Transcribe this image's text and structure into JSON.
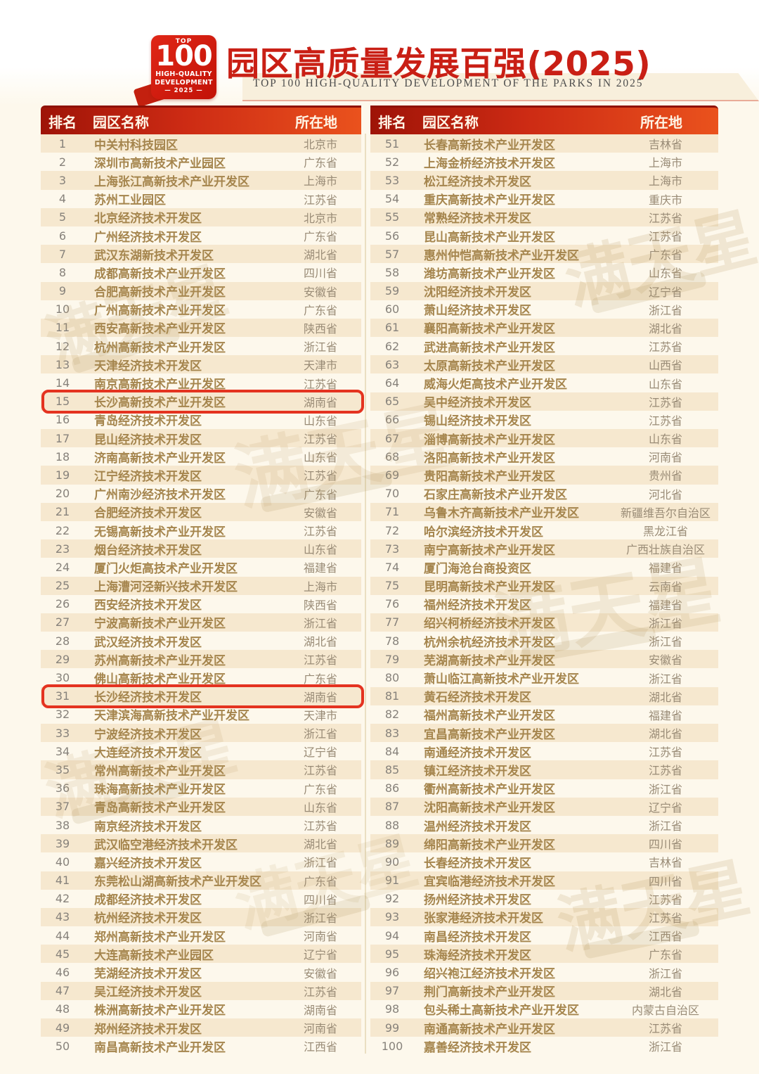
{
  "header": {
    "badge": {
      "top": "TOP",
      "number": "100",
      "line1": "HIGH-QUALITY",
      "line2": "DEVELOPMENT",
      "year": "— 2025 —"
    },
    "title": "园区高质量发展百强(2025)",
    "subtitle": "TOP 100 HIGH-QUALITY DEVELOPMENT OF THE PARKS IN 2025"
  },
  "watermark": {
    "text": "满天星"
  },
  "colors": {
    "accent_red": "#cd2b14",
    "highlight_border": "#e43320",
    "park_name_gold": "#a5854d",
    "stripe_beige": "#f6e8cf",
    "page_cream": "#fdf8ec"
  },
  "table": {
    "columns": [
      "排名",
      "园区名称",
      "所在地"
    ],
    "highlighted_ranks": [
      "15",
      "31"
    ],
    "left_rows": [
      {
        "rank": "1",
        "name": "中关村科技园区",
        "location": "北京市"
      },
      {
        "rank": "2",
        "name": "深圳市高新技术产业园区",
        "location": "广东省"
      },
      {
        "rank": "3",
        "name": "上海张江高新技术产业开发区",
        "location": "上海市"
      },
      {
        "rank": "4",
        "name": "苏州工业园区",
        "location": "江苏省"
      },
      {
        "rank": "5",
        "name": "北京经济技术开发区",
        "location": "北京市"
      },
      {
        "rank": "6",
        "name": "广州经济技术开发区",
        "location": "广东省"
      },
      {
        "rank": "7",
        "name": "武汉东湖新技术开发区",
        "location": "湖北省"
      },
      {
        "rank": "8",
        "name": "成都高新技术产业开发区",
        "location": "四川省"
      },
      {
        "rank": "9",
        "name": "合肥高新技术产业开发区",
        "location": "安徽省"
      },
      {
        "rank": "10",
        "name": "广州高新技术产业开发区",
        "location": "广东省"
      },
      {
        "rank": "11",
        "name": "西安高新技术产业开发区",
        "location": "陕西省"
      },
      {
        "rank": "12",
        "name": "杭州高新技术产业开发区",
        "location": "浙江省"
      },
      {
        "rank": "13",
        "name": "天津经济技术开发区",
        "location": "天津市"
      },
      {
        "rank": "14",
        "name": "南京高新技术产业开发区",
        "location": "江苏省"
      },
      {
        "rank": "15",
        "name": "长沙高新技术产业开发区",
        "location": "湖南省"
      },
      {
        "rank": "16",
        "name": "青岛经济技术开发区",
        "location": "山东省"
      },
      {
        "rank": "17",
        "name": "昆山经济技术开发区",
        "location": "江苏省"
      },
      {
        "rank": "18",
        "name": "济南高新技术产业开发区",
        "location": "山东省"
      },
      {
        "rank": "19",
        "name": "江宁经济技术开发区",
        "location": "江苏省"
      },
      {
        "rank": "20",
        "name": "广州南沙经济技术开发区",
        "location": "广东省"
      },
      {
        "rank": "21",
        "name": "合肥经济技术开发区",
        "location": "安徽省"
      },
      {
        "rank": "22",
        "name": "无锡高新技术产业开发区",
        "location": "江苏省"
      },
      {
        "rank": "23",
        "name": "烟台经济技术开发区",
        "location": "山东省"
      },
      {
        "rank": "24",
        "name": "厦门火炬高技术产业开发区",
        "location": "福建省"
      },
      {
        "rank": "25",
        "name": "上海漕河泾新兴技术开发区",
        "location": "上海市"
      },
      {
        "rank": "26",
        "name": "西安经济技术开发区",
        "location": "陕西省"
      },
      {
        "rank": "27",
        "name": "宁波高新技术产业开发区",
        "location": "浙江省"
      },
      {
        "rank": "28",
        "name": "武汉经济技术开发区",
        "location": "湖北省"
      },
      {
        "rank": "29",
        "name": "苏州高新技术产业开发区",
        "location": "江苏省"
      },
      {
        "rank": "30",
        "name": "佛山高新技术产业开发区",
        "location": "广东省"
      },
      {
        "rank": "31",
        "name": "长沙经济技术开发区",
        "location": "湖南省"
      },
      {
        "rank": "32",
        "name": "天津滨海高新技术产业开发区",
        "location": "天津市"
      },
      {
        "rank": "33",
        "name": "宁波经济技术开发区",
        "location": "浙江省"
      },
      {
        "rank": "34",
        "name": "大连经济技术开发区",
        "location": "辽宁省"
      },
      {
        "rank": "35",
        "name": "常州高新技术产业开发区",
        "location": "江苏省"
      },
      {
        "rank": "36",
        "name": "珠海高新技术产业开发区",
        "location": "广东省"
      },
      {
        "rank": "37",
        "name": "青岛高新技术产业开发区",
        "location": "山东省"
      },
      {
        "rank": "38",
        "name": "南京经济技术开发区",
        "location": "江苏省"
      },
      {
        "rank": "39",
        "name": "武汉临空港经济技术开发区",
        "location": "湖北省"
      },
      {
        "rank": "40",
        "name": "嘉兴经济技术开发区",
        "location": "浙江省"
      },
      {
        "rank": "41",
        "name": "东莞松山湖高新技术产业开发区",
        "location": "广东省"
      },
      {
        "rank": "42",
        "name": "成都经济技术开发区",
        "location": "四川省"
      },
      {
        "rank": "43",
        "name": "杭州经济技术开发区",
        "location": "浙江省"
      },
      {
        "rank": "44",
        "name": "郑州高新技术产业开发区",
        "location": "河南省"
      },
      {
        "rank": "45",
        "name": "大连高新技术产业园区",
        "location": "辽宁省"
      },
      {
        "rank": "46",
        "name": "芜湖经济技术开发区",
        "location": "安徽省"
      },
      {
        "rank": "47",
        "name": "吴江经济技术开发区",
        "location": "江苏省"
      },
      {
        "rank": "48",
        "name": "株洲高新技术产业开发区",
        "location": "湖南省"
      },
      {
        "rank": "49",
        "name": "郑州经济技术开发区",
        "location": "河南省"
      },
      {
        "rank": "50",
        "name": "南昌高新技术产业开发区",
        "location": "江西省"
      }
    ],
    "right_rows": [
      {
        "rank": "51",
        "name": "长春高新技术产业开发区",
        "location": "吉林省"
      },
      {
        "rank": "52",
        "name": "上海金桥经济技术开发区",
        "location": "上海市"
      },
      {
        "rank": "53",
        "name": "松江经济技术开发区",
        "location": "上海市"
      },
      {
        "rank": "54",
        "name": "重庆高新技术产业开发区",
        "location": "重庆市"
      },
      {
        "rank": "55",
        "name": "常熟经济技术开发区",
        "location": "江苏省"
      },
      {
        "rank": "56",
        "name": "昆山高新技术产业开发区",
        "location": "江苏省"
      },
      {
        "rank": "57",
        "name": "惠州仲恺高新技术产业开发区",
        "location": "广东省"
      },
      {
        "rank": "58",
        "name": "潍坊高新技术产业开发区",
        "location": "山东省"
      },
      {
        "rank": "59",
        "name": "沈阳经济技术开发区",
        "location": "辽宁省"
      },
      {
        "rank": "60",
        "name": "萧山经济技术开发区",
        "location": "浙江省"
      },
      {
        "rank": "61",
        "name": "襄阳高新技术产业开发区",
        "location": "湖北省"
      },
      {
        "rank": "62",
        "name": "武进高新技术产业开发区",
        "location": "江苏省"
      },
      {
        "rank": "63",
        "name": "太原高新技术产业开发区",
        "location": "山西省"
      },
      {
        "rank": "64",
        "name": "威海火炬高技术产业开发区",
        "location": "山东省"
      },
      {
        "rank": "65",
        "name": "吴中经济技术开发区",
        "location": "江苏省"
      },
      {
        "rank": "66",
        "name": "锡山经济技术开发区",
        "location": "江苏省"
      },
      {
        "rank": "67",
        "name": "淄博高新技术产业开发区",
        "location": "山东省"
      },
      {
        "rank": "68",
        "name": "洛阳高新技术产业开发区",
        "location": "河南省"
      },
      {
        "rank": "69",
        "name": "贵阳高新技术产业开发区",
        "location": "贵州省"
      },
      {
        "rank": "70",
        "name": "石家庄高新技术产业开发区",
        "location": "河北省"
      },
      {
        "rank": "71",
        "name": "乌鲁木齐高新技术产业开发区",
        "location": "新疆维吾尔自治区"
      },
      {
        "rank": "72",
        "name": "哈尔滨经济技术开发区",
        "location": "黑龙江省"
      },
      {
        "rank": "73",
        "name": "南宁高新技术产业开发区",
        "location": "广西壮族自治区"
      },
      {
        "rank": "74",
        "name": "厦门海沧台商投资区",
        "location": "福建省"
      },
      {
        "rank": "75",
        "name": "昆明高新技术产业开发区",
        "location": "云南省"
      },
      {
        "rank": "76",
        "name": "福州经济技术开发区",
        "location": "福建省"
      },
      {
        "rank": "77",
        "name": "绍兴柯桥经济技术开发区",
        "location": "浙江省"
      },
      {
        "rank": "78",
        "name": "杭州余杭经济技术开发区",
        "location": "浙江省"
      },
      {
        "rank": "79",
        "name": "芜湖高新技术产业开发区",
        "location": "安徽省"
      },
      {
        "rank": "80",
        "name": "萧山临江高新技术产业开发区",
        "location": "浙江省"
      },
      {
        "rank": "81",
        "name": "黄石经济技术开发区",
        "location": "湖北省"
      },
      {
        "rank": "82",
        "name": "福州高新技术产业开发区",
        "location": "福建省"
      },
      {
        "rank": "83",
        "name": "宜昌高新技术产业开发区",
        "location": "湖北省"
      },
      {
        "rank": "84",
        "name": "南通经济技术开发区",
        "location": "江苏省"
      },
      {
        "rank": "85",
        "name": "镇江经济技术开发区",
        "location": "江苏省"
      },
      {
        "rank": "86",
        "name": "衢州高新技术产业开发区",
        "location": "浙江省"
      },
      {
        "rank": "87",
        "name": "沈阳高新技术产业开发区",
        "location": "辽宁省"
      },
      {
        "rank": "88",
        "name": "温州经济技术开发区",
        "location": "浙江省"
      },
      {
        "rank": "89",
        "name": "绵阳高新技术产业开发区",
        "location": "四川省"
      },
      {
        "rank": "90",
        "name": "长春经济技术开发区",
        "location": "吉林省"
      },
      {
        "rank": "91",
        "name": "宜宾临港经济技术开发区",
        "location": "四川省"
      },
      {
        "rank": "92",
        "name": "扬州经济技术开发区",
        "location": "江苏省"
      },
      {
        "rank": "93",
        "name": "张家港经济技术开发区",
        "location": "江苏省"
      },
      {
        "rank": "94",
        "name": "南昌经济技术开发区",
        "location": "江西省"
      },
      {
        "rank": "95",
        "name": "珠海经济技术开发区",
        "location": "广东省"
      },
      {
        "rank": "96",
        "name": "绍兴袍江经济技术开发区",
        "location": "浙江省"
      },
      {
        "rank": "97",
        "name": "荆门高新技术产业开发区",
        "location": "湖北省"
      },
      {
        "rank": "98",
        "name": "包头稀土高新技术产业开发区",
        "location": "内蒙古自治区"
      },
      {
        "rank": "99",
        "name": "南通高新技术产业开发区",
        "location": "江苏省"
      },
      {
        "rank": "100",
        "name": "嘉善经济技术开发区",
        "location": "浙江省"
      }
    ]
  }
}
